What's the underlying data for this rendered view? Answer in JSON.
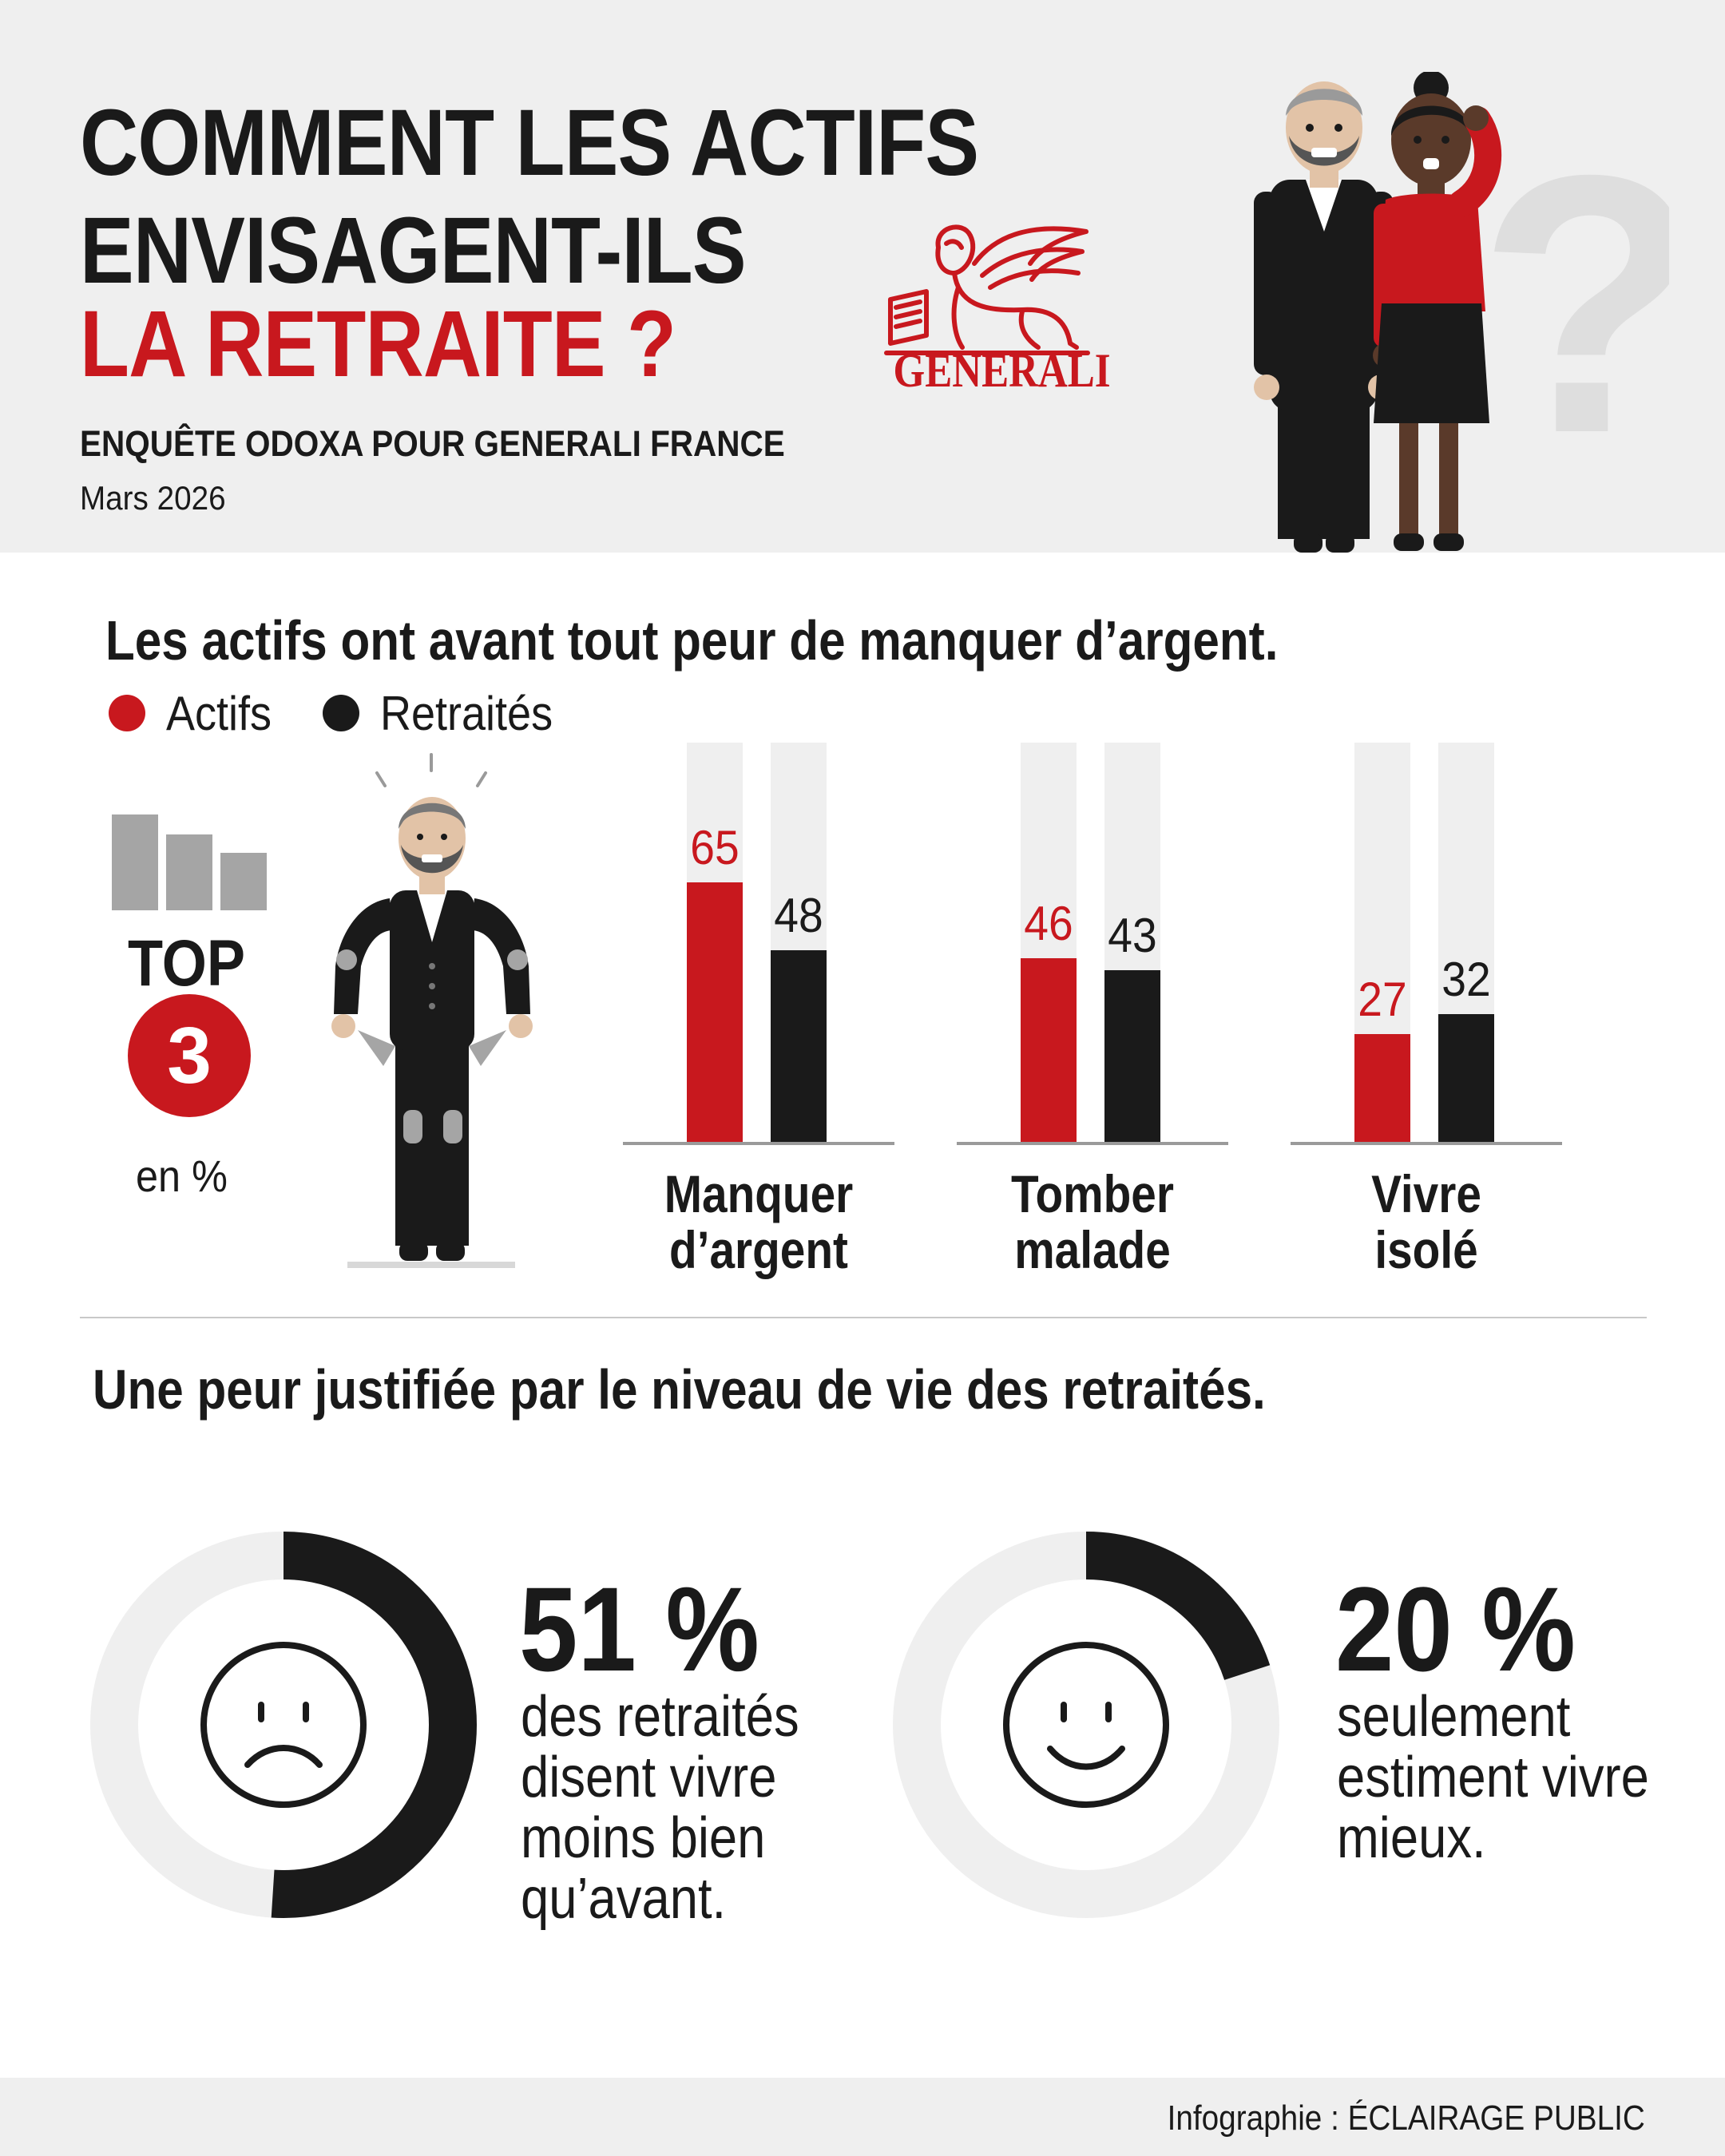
{
  "header": {
    "title_line1": "COMMENT LES ACTIFS",
    "title_line2": "ENVISAGENT-ILS",
    "title_line3": "LA RETRAITE ?",
    "survey": "ENQUÊTE ODOXA POUR GENERALI FRANCE",
    "date": "Mars 2026",
    "logo_text": "GENERALI"
  },
  "colors": {
    "red": "#c8181e",
    "black": "#1a1a1a",
    "light": "#efefef"
  },
  "section1": {
    "title": "Les actifs ont avant tout peur de manquer d’argent.",
    "top_word": "TOP",
    "top_number": "3",
    "unit": "en %"
  },
  "chart_data": {
    "type": "bar",
    "categories": [
      "Manquer\nd’argent",
      "Tomber\nmalade",
      "Vivre\nisolé"
    ],
    "series": [
      {
        "name": "Actifs",
        "values": [
          65,
          46,
          27
        ],
        "color": "#c8181e"
      },
      {
        "name": "Retraités",
        "values": [
          48,
          43,
          32
        ],
        "color": "#1a1a1a"
      }
    ],
    "ylim": [
      0,
      100
    ],
    "legend": "top-left"
  },
  "section2": {
    "title": "Une peur justifiée par le niveau de vie des retraités.",
    "stats": [
      {
        "value": "51 %",
        "fraction": 0.51,
        "text": "des retraités disent vivre moins bien qu’avant.",
        "face": "sad-face-icon"
      },
      {
        "value": "20 %",
        "fraction": 0.2,
        "text": "seulement estiment vivre mieux.",
        "face": "smile-face-icon"
      }
    ]
  },
  "footer": {
    "credit": "Infographie :  ÉCLAIRAGE PUBLIC"
  }
}
